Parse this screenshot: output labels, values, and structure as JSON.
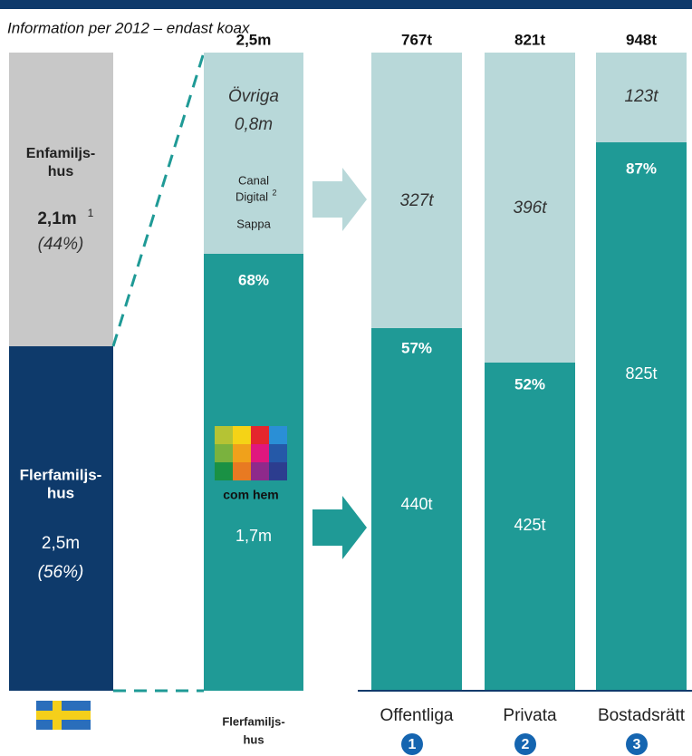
{
  "subtitle": "Information per 2012 – endast koax",
  "sweden": {
    "top_line1": "Enfamiljs-",
    "top_line2": "hus",
    "top_value": "2,1m",
    "top_note": "1",
    "top_share": "(44%)",
    "bottom_line1": "Flerfamiljs-",
    "bottom_line2": "hus",
    "bottom_value": "2,5m",
    "bottom_share": "(56%)"
  },
  "multi": {
    "total": "2,5m",
    "other_line1": "Övriga",
    "other_line2": "0,8m",
    "canal1": "Canal",
    "canal2": "Digital",
    "canal_note": "2",
    "sappa": "Sappa",
    "comhem_share": "68%",
    "logo": "com hem",
    "comhem_value": "1,7m",
    "footer_line1": "Flerfamiljs-",
    "footer_line2": "hus"
  },
  "segments": [
    {
      "total": "767t",
      "other": "327t",
      "share": "57%",
      "comhem": "440t",
      "name": "Offentliga",
      "number": "1"
    },
    {
      "total": "821t",
      "other": "396t",
      "share": "52%",
      "comhem": "425t",
      "name": "Privata",
      "number": "2"
    },
    {
      "total": "948t",
      "other": "123t",
      "share": "87%",
      "comhem": "825t",
      "name": "Bostadsrätt",
      "number": "3"
    }
  ]
}
